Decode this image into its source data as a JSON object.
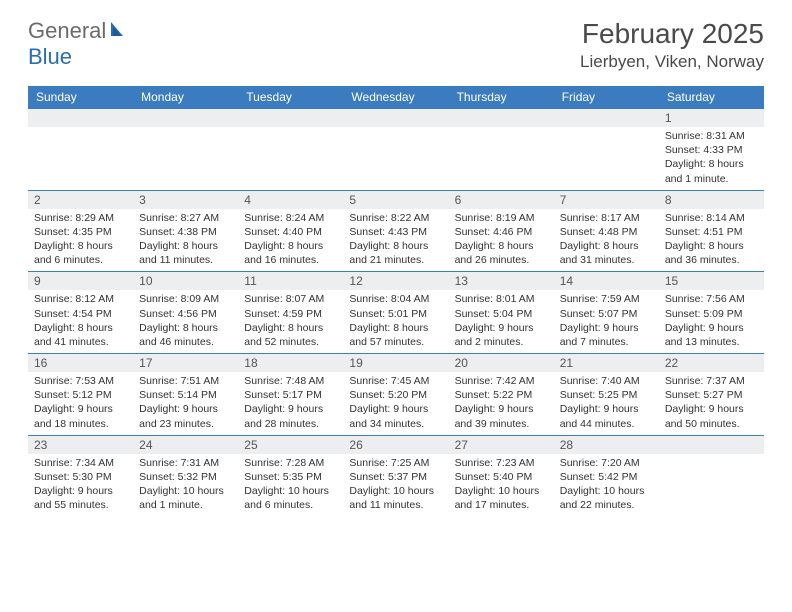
{
  "logo": {
    "part1": "General",
    "part2": "Blue"
  },
  "title": "February 2025",
  "location": "Lierbyen, Viken, Norway",
  "colors": {
    "header_bg": "#3b7bbf",
    "header_text": "#ffffff",
    "daynum_bg": "#eceef0",
    "border": "#3b7bbf",
    "logo_gray": "#6b6b6b",
    "logo_blue": "#2b6b b3"
  },
  "day_names": [
    "Sunday",
    "Monday",
    "Tuesday",
    "Wednesday",
    "Thursday",
    "Friday",
    "Saturday"
  ],
  "weeks": [
    [
      {
        "n": "",
        "sr": "",
        "ss": "",
        "dl": ""
      },
      {
        "n": "",
        "sr": "",
        "ss": "",
        "dl": ""
      },
      {
        "n": "",
        "sr": "",
        "ss": "",
        "dl": ""
      },
      {
        "n": "",
        "sr": "",
        "ss": "",
        "dl": ""
      },
      {
        "n": "",
        "sr": "",
        "ss": "",
        "dl": ""
      },
      {
        "n": "",
        "sr": "",
        "ss": "",
        "dl": ""
      },
      {
        "n": "1",
        "sr": "Sunrise: 8:31 AM",
        "ss": "Sunset: 4:33 PM",
        "dl": "Daylight: 8 hours and 1 minute."
      }
    ],
    [
      {
        "n": "2",
        "sr": "Sunrise: 8:29 AM",
        "ss": "Sunset: 4:35 PM",
        "dl": "Daylight: 8 hours and 6 minutes."
      },
      {
        "n": "3",
        "sr": "Sunrise: 8:27 AM",
        "ss": "Sunset: 4:38 PM",
        "dl": "Daylight: 8 hours and 11 minutes."
      },
      {
        "n": "4",
        "sr": "Sunrise: 8:24 AM",
        "ss": "Sunset: 4:40 PM",
        "dl": "Daylight: 8 hours and 16 minutes."
      },
      {
        "n": "5",
        "sr": "Sunrise: 8:22 AM",
        "ss": "Sunset: 4:43 PM",
        "dl": "Daylight: 8 hours and 21 minutes."
      },
      {
        "n": "6",
        "sr": "Sunrise: 8:19 AM",
        "ss": "Sunset: 4:46 PM",
        "dl": "Daylight: 8 hours and 26 minutes."
      },
      {
        "n": "7",
        "sr": "Sunrise: 8:17 AM",
        "ss": "Sunset: 4:48 PM",
        "dl": "Daylight: 8 hours and 31 minutes."
      },
      {
        "n": "8",
        "sr": "Sunrise: 8:14 AM",
        "ss": "Sunset: 4:51 PM",
        "dl": "Daylight: 8 hours and 36 minutes."
      }
    ],
    [
      {
        "n": "9",
        "sr": "Sunrise: 8:12 AM",
        "ss": "Sunset: 4:54 PM",
        "dl": "Daylight: 8 hours and 41 minutes."
      },
      {
        "n": "10",
        "sr": "Sunrise: 8:09 AM",
        "ss": "Sunset: 4:56 PM",
        "dl": "Daylight: 8 hours and 46 minutes."
      },
      {
        "n": "11",
        "sr": "Sunrise: 8:07 AM",
        "ss": "Sunset: 4:59 PM",
        "dl": "Daylight: 8 hours and 52 minutes."
      },
      {
        "n": "12",
        "sr": "Sunrise: 8:04 AM",
        "ss": "Sunset: 5:01 PM",
        "dl": "Daylight: 8 hours and 57 minutes."
      },
      {
        "n": "13",
        "sr": "Sunrise: 8:01 AM",
        "ss": "Sunset: 5:04 PM",
        "dl": "Daylight: 9 hours and 2 minutes."
      },
      {
        "n": "14",
        "sr": "Sunrise: 7:59 AM",
        "ss": "Sunset: 5:07 PM",
        "dl": "Daylight: 9 hours and 7 minutes."
      },
      {
        "n": "15",
        "sr": "Sunrise: 7:56 AM",
        "ss": "Sunset: 5:09 PM",
        "dl": "Daylight: 9 hours and 13 minutes."
      }
    ],
    [
      {
        "n": "16",
        "sr": "Sunrise: 7:53 AM",
        "ss": "Sunset: 5:12 PM",
        "dl": "Daylight: 9 hours and 18 minutes."
      },
      {
        "n": "17",
        "sr": "Sunrise: 7:51 AM",
        "ss": "Sunset: 5:14 PM",
        "dl": "Daylight: 9 hours and 23 minutes."
      },
      {
        "n": "18",
        "sr": "Sunrise: 7:48 AM",
        "ss": "Sunset: 5:17 PM",
        "dl": "Daylight: 9 hours and 28 minutes."
      },
      {
        "n": "19",
        "sr": "Sunrise: 7:45 AM",
        "ss": "Sunset: 5:20 PM",
        "dl": "Daylight: 9 hours and 34 minutes."
      },
      {
        "n": "20",
        "sr": "Sunrise: 7:42 AM",
        "ss": "Sunset: 5:22 PM",
        "dl": "Daylight: 9 hours and 39 minutes."
      },
      {
        "n": "21",
        "sr": "Sunrise: 7:40 AM",
        "ss": "Sunset: 5:25 PM",
        "dl": "Daylight: 9 hours and 44 minutes."
      },
      {
        "n": "22",
        "sr": "Sunrise: 7:37 AM",
        "ss": "Sunset: 5:27 PM",
        "dl": "Daylight: 9 hours and 50 minutes."
      }
    ],
    [
      {
        "n": "23",
        "sr": "Sunrise: 7:34 AM",
        "ss": "Sunset: 5:30 PM",
        "dl": "Daylight: 9 hours and 55 minutes."
      },
      {
        "n": "24",
        "sr": "Sunrise: 7:31 AM",
        "ss": "Sunset: 5:32 PM",
        "dl": "Daylight: 10 hours and 1 minute."
      },
      {
        "n": "25",
        "sr": "Sunrise: 7:28 AM",
        "ss": "Sunset: 5:35 PM",
        "dl": "Daylight: 10 hours and 6 minutes."
      },
      {
        "n": "26",
        "sr": "Sunrise: 7:25 AM",
        "ss": "Sunset: 5:37 PM",
        "dl": "Daylight: 10 hours and 11 minutes."
      },
      {
        "n": "27",
        "sr": "Sunrise: 7:23 AM",
        "ss": "Sunset: 5:40 PM",
        "dl": "Daylight: 10 hours and 17 minutes."
      },
      {
        "n": "28",
        "sr": "Sunrise: 7:20 AM",
        "ss": "Sunset: 5:42 PM",
        "dl": "Daylight: 10 hours and 22 minutes."
      },
      {
        "n": "",
        "sr": "",
        "ss": "",
        "dl": ""
      }
    ]
  ]
}
